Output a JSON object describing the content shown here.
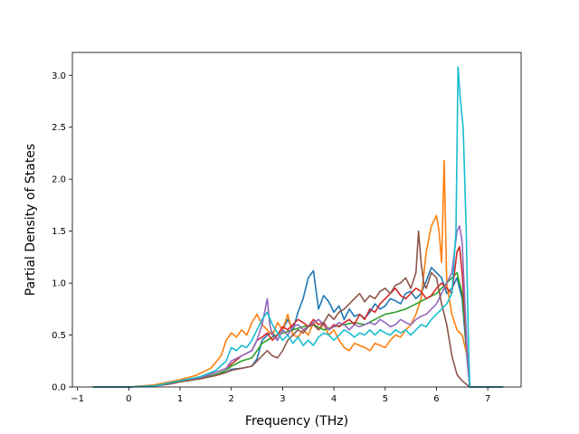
{
  "chart_data": {
    "type": "line",
    "title": "",
    "xlabel": "Frequency (THz)",
    "ylabel": "Partial Density of States",
    "xlim": [
      -1.1,
      7.65
    ],
    "ylim": [
      0.0,
      3.22
    ],
    "xticks": [
      -1,
      0,
      1,
      2,
      3,
      4,
      5,
      6,
      7
    ],
    "xtick_labels": [
      "−1",
      "0",
      "1",
      "2",
      "3",
      "4",
      "5",
      "6",
      "7"
    ],
    "yticks": [
      0.0,
      0.5,
      1.0,
      1.5,
      2.0,
      2.5,
      3.0
    ],
    "ytick_labels": [
      "0.0",
      "0.5",
      "1.0",
      "1.5",
      "2.0",
      "2.5",
      "3.0"
    ],
    "grid": false,
    "legend": "none",
    "series": [
      {
        "color": "#1f77b4",
        "x": [
          -0.7,
          0.0,
          0.5,
          0.8,
          1.0,
          1.4,
          1.7,
          1.9,
          2.0,
          2.2,
          2.4,
          2.5,
          2.6,
          2.7,
          2.8,
          2.9,
          3.0,
          3.1,
          3.2,
          3.3,
          3.4,
          3.5,
          3.6,
          3.7,
          3.8,
          3.9,
          4.0,
          4.1,
          4.2,
          4.3,
          4.4,
          4.5,
          4.6,
          4.7,
          4.8,
          4.9,
          5.0,
          5.1,
          5.2,
          5.3,
          5.4,
          5.5,
          5.6,
          5.7,
          5.8,
          5.9,
          6.0,
          6.1,
          6.2,
          6.3,
          6.4,
          6.5,
          6.6,
          6.65,
          7.3
        ],
        "values": [
          0.0,
          0.0,
          0.01,
          0.03,
          0.05,
          0.08,
          0.12,
          0.14,
          0.17,
          0.18,
          0.2,
          0.27,
          0.45,
          0.5,
          0.53,
          0.45,
          0.55,
          0.65,
          0.55,
          0.72,
          0.85,
          1.05,
          1.12,
          0.75,
          0.88,
          0.82,
          0.72,
          0.78,
          0.65,
          0.75,
          0.68,
          0.7,
          0.66,
          0.72,
          0.8,
          0.75,
          0.78,
          0.85,
          0.83,
          0.8,
          0.9,
          0.92,
          0.85,
          0.9,
          1.02,
          1.15,
          1.1,
          1.05,
          0.9,
          0.95,
          1.05,
          0.85,
          0.25,
          0.0,
          0.0
        ]
      },
      {
        "color": "#ff7f0e",
        "x": [
          -0.7,
          0.0,
          0.5,
          0.8,
          1.0,
          1.3,
          1.6,
          1.8,
          1.9,
          2.0,
          2.1,
          2.2,
          2.3,
          2.4,
          2.5,
          2.6,
          2.7,
          2.8,
          2.9,
          3.0,
          3.1,
          3.2,
          3.3,
          3.4,
          3.5,
          3.6,
          3.7,
          3.8,
          3.9,
          4.0,
          4.1,
          4.2,
          4.3,
          4.4,
          4.5,
          4.6,
          4.7,
          4.8,
          4.9,
          5.0,
          5.1,
          5.2,
          5.3,
          5.4,
          5.5,
          5.6,
          5.7,
          5.8,
          5.9,
          6.0,
          6.05,
          6.1,
          6.15,
          6.2,
          6.3,
          6.4,
          6.5,
          6.6,
          6.65,
          7.3
        ],
        "values": [
          0.0,
          0.0,
          0.02,
          0.05,
          0.07,
          0.11,
          0.18,
          0.3,
          0.45,
          0.52,
          0.48,
          0.55,
          0.5,
          0.62,
          0.7,
          0.6,
          0.55,
          0.5,
          0.62,
          0.55,
          0.7,
          0.5,
          0.48,
          0.55,
          0.5,
          0.62,
          0.55,
          0.6,
          0.5,
          0.55,
          0.45,
          0.38,
          0.35,
          0.42,
          0.4,
          0.38,
          0.35,
          0.42,
          0.4,
          0.38,
          0.45,
          0.5,
          0.48,
          0.55,
          0.6,
          0.7,
          0.85,
          1.3,
          1.55,
          1.65,
          1.5,
          1.2,
          2.18,
          1.0,
          0.7,
          0.55,
          0.5,
          0.3,
          0.0,
          0.0
        ]
      },
      {
        "color": "#2ca02c",
        "x": [
          -0.7,
          0.0,
          0.5,
          0.8,
          1.0,
          1.4,
          1.7,
          1.9,
          2.0,
          2.2,
          2.4,
          2.5,
          2.6,
          2.7,
          2.8,
          2.9,
          3.0,
          3.2,
          3.4,
          3.6,
          3.8,
          4.0,
          4.2,
          4.4,
          4.6,
          4.8,
          5.0,
          5.2,
          5.4,
          5.6,
          5.8,
          6.0,
          6.2,
          6.4,
          6.5,
          6.6,
          6.65,
          7.3
        ],
        "values": [
          0.0,
          0.0,
          0.01,
          0.03,
          0.05,
          0.08,
          0.12,
          0.16,
          0.2,
          0.25,
          0.28,
          0.35,
          0.42,
          0.45,
          0.48,
          0.5,
          0.52,
          0.55,
          0.58,
          0.6,
          0.55,
          0.58,
          0.6,
          0.62,
          0.6,
          0.65,
          0.7,
          0.72,
          0.75,
          0.8,
          0.85,
          0.9,
          1.0,
          1.1,
          0.9,
          0.3,
          0.0,
          0.0
        ]
      },
      {
        "color": "#d62728",
        "x": [
          -0.7,
          0.0,
          0.5,
          0.8,
          1.0,
          1.4,
          1.7,
          1.9,
          2.0,
          2.2,
          2.4,
          2.5,
          2.6,
          2.7,
          2.8,
          2.9,
          3.0,
          3.1,
          3.2,
          3.3,
          3.4,
          3.5,
          3.6,
          3.7,
          3.8,
          3.9,
          4.0,
          4.1,
          4.2,
          4.3,
          4.4,
          4.5,
          4.6,
          4.7,
          4.8,
          4.9,
          5.0,
          5.1,
          5.2,
          5.3,
          5.4,
          5.5,
          5.6,
          5.7,
          5.8,
          5.9,
          6.0,
          6.1,
          6.2,
          6.3,
          6.4,
          6.45,
          6.5,
          6.6,
          6.65,
          7.3
        ],
        "values": [
          0.0,
          0.0,
          0.01,
          0.03,
          0.05,
          0.09,
          0.14,
          0.18,
          0.22,
          0.3,
          0.35,
          0.45,
          0.48,
          0.52,
          0.45,
          0.5,
          0.58,
          0.55,
          0.6,
          0.65,
          0.62,
          0.58,
          0.65,
          0.6,
          0.62,
          0.55,
          0.6,
          0.58,
          0.62,
          0.65,
          0.6,
          0.7,
          0.65,
          0.75,
          0.72,
          0.8,
          0.85,
          0.9,
          0.95,
          0.88,
          0.85,
          0.9,
          0.95,
          0.92,
          0.85,
          0.88,
          0.95,
          1.0,
          0.95,
          0.9,
          1.3,
          1.35,
          1.1,
          0.3,
          0.0,
          0.0
        ]
      },
      {
        "color": "#9467bd",
        "x": [
          -0.7,
          0.0,
          0.5,
          0.8,
          1.0,
          1.4,
          1.7,
          1.9,
          2.0,
          2.2,
          2.4,
          2.5,
          2.6,
          2.7,
          2.75,
          2.8,
          2.9,
          3.0,
          3.1,
          3.2,
          3.3,
          3.4,
          3.5,
          3.6,
          3.7,
          3.8,
          3.9,
          4.0,
          4.1,
          4.2,
          4.3,
          4.4,
          4.5,
          4.6,
          4.7,
          4.8,
          4.9,
          5.0,
          5.1,
          5.2,
          5.3,
          5.4,
          5.5,
          5.6,
          5.7,
          5.8,
          5.9,
          6.0,
          6.1,
          6.2,
          6.3,
          6.4,
          6.45,
          6.5,
          6.6,
          6.65,
          7.3
        ],
        "values": [
          0.0,
          0.0,
          0.01,
          0.03,
          0.05,
          0.09,
          0.14,
          0.18,
          0.25,
          0.3,
          0.35,
          0.45,
          0.6,
          0.85,
          0.6,
          0.5,
          0.45,
          0.55,
          0.5,
          0.58,
          0.6,
          0.55,
          0.58,
          0.62,
          0.65,
          0.6,
          0.55,
          0.58,
          0.62,
          0.6,
          0.55,
          0.6,
          0.58,
          0.6,
          0.62,
          0.6,
          0.65,
          0.62,
          0.58,
          0.6,
          0.65,
          0.62,
          0.6,
          0.65,
          0.68,
          0.7,
          0.75,
          0.8,
          0.9,
          1.0,
          1.1,
          1.5,
          1.55,
          1.4,
          0.3,
          0.0,
          0.0
        ]
      },
      {
        "color": "#8c564b",
        "x": [
          -0.7,
          0.0,
          0.5,
          0.8,
          1.0,
          1.4,
          1.7,
          1.9,
          2.0,
          2.2,
          2.4,
          2.5,
          2.6,
          2.7,
          2.8,
          2.9,
          3.0,
          3.1,
          3.2,
          3.3,
          3.4,
          3.5,
          3.6,
          3.7,
          3.8,
          3.9,
          4.0,
          4.1,
          4.2,
          4.3,
          4.4,
          4.5,
          4.6,
          4.7,
          4.8,
          4.9,
          5.0,
          5.1,
          5.2,
          5.3,
          5.4,
          5.5,
          5.6,
          5.65,
          5.7,
          5.75,
          5.8,
          5.9,
          6.0,
          6.1,
          6.2,
          6.3,
          6.4,
          6.5,
          6.6,
          6.65,
          7.3
        ],
        "values": [
          0.0,
          0.0,
          0.01,
          0.03,
          0.05,
          0.08,
          0.11,
          0.14,
          0.16,
          0.18,
          0.2,
          0.25,
          0.3,
          0.35,
          0.3,
          0.28,
          0.35,
          0.45,
          0.5,
          0.55,
          0.52,
          0.58,
          0.6,
          0.55,
          0.62,
          0.7,
          0.65,
          0.72,
          0.75,
          0.8,
          0.85,
          0.9,
          0.82,
          0.88,
          0.85,
          0.92,
          0.95,
          0.9,
          0.98,
          1.0,
          1.05,
          0.95,
          1.1,
          1.5,
          1.2,
          1.0,
          0.95,
          1.1,
          1.05,
          0.8,
          0.6,
          0.3,
          0.12,
          0.06,
          0.02,
          0.0,
          0.0
        ]
      },
      {
        "color": "#17becf",
        "x": [
          -0.7,
          0.0,
          0.5,
          0.8,
          1.0,
          1.4,
          1.7,
          1.9,
          2.0,
          2.1,
          2.2,
          2.3,
          2.4,
          2.5,
          2.6,
          2.7,
          2.8,
          2.9,
          3.0,
          3.1,
          3.2,
          3.3,
          3.4,
          3.5,
          3.6,
          3.7,
          3.8,
          3.9,
          4.0,
          4.1,
          4.2,
          4.3,
          4.4,
          4.5,
          4.6,
          4.7,
          4.8,
          4.9,
          5.0,
          5.1,
          5.2,
          5.3,
          5.4,
          5.5,
          5.6,
          5.7,
          5.8,
          5.9,
          6.0,
          6.1,
          6.2,
          6.3,
          6.38,
          6.42,
          6.46,
          6.52,
          6.58,
          6.62,
          6.65,
          7.3
        ],
        "values": [
          0.0,
          0.0,
          0.01,
          0.04,
          0.06,
          0.1,
          0.16,
          0.25,
          0.38,
          0.35,
          0.4,
          0.38,
          0.45,
          0.55,
          0.65,
          0.72,
          0.6,
          0.52,
          0.45,
          0.5,
          0.42,
          0.48,
          0.4,
          0.45,
          0.4,
          0.48,
          0.52,
          0.5,
          0.45,
          0.5,
          0.55,
          0.52,
          0.48,
          0.52,
          0.5,
          0.55,
          0.5,
          0.55,
          0.52,
          0.5,
          0.55,
          0.52,
          0.55,
          0.5,
          0.55,
          0.6,
          0.58,
          0.65,
          0.7,
          0.75,
          0.8,
          0.9,
          1.5,
          3.08,
          2.8,
          2.5,
          1.5,
          0.5,
          0.0,
          0.0
        ]
      }
    ]
  }
}
